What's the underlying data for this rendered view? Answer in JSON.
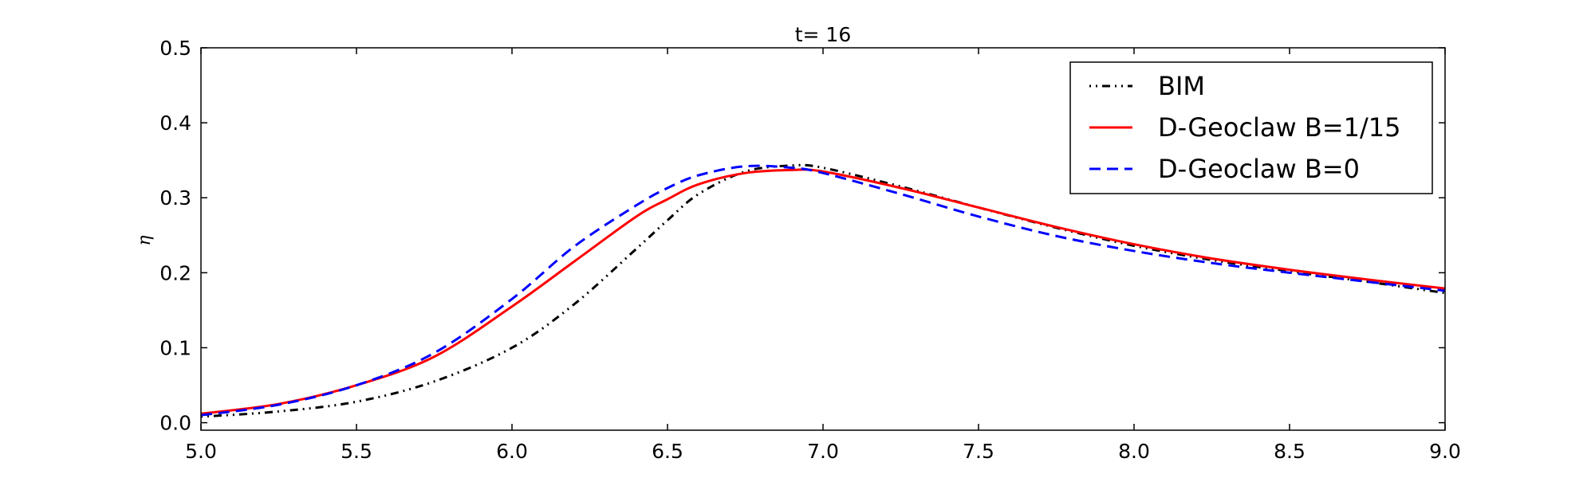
{
  "chart_data": {
    "type": "line",
    "title": "t= 16",
    "xlabel": "",
    "ylabel": "η",
    "xlim": [
      5.0,
      9.0
    ],
    "ylim": [
      -0.01,
      0.5
    ],
    "xticks": [
      "5.0",
      "5.5",
      "6.0",
      "6.5",
      "7.0",
      "7.5",
      "8.0",
      "8.5",
      "9.0"
    ],
    "yticks": [
      "0.0",
      "0.1",
      "0.2",
      "0.3",
      "0.4",
      "0.5"
    ],
    "legend_position": "top-right",
    "grid": false,
    "series": [
      {
        "name": "BIM",
        "color": "#000000",
        "style": "dashdot",
        "x": [
          5.0,
          5.25,
          5.5,
          5.75,
          6.0,
          6.2,
          6.4,
          6.5,
          6.6,
          6.75,
          6.9,
          7.0,
          7.25,
          7.5,
          7.75,
          8.0,
          8.25,
          8.5,
          8.75,
          9.0
        ],
        "y": [
          0.008,
          0.015,
          0.028,
          0.055,
          0.1,
          0.158,
          0.232,
          0.27,
          0.305,
          0.335,
          0.343,
          0.34,
          0.315,
          0.287,
          0.26,
          0.236,
          0.217,
          0.202,
          0.188,
          0.173
        ]
      },
      {
        "name": "D-Geoclaw B=1/15",
        "color": "#ff0000",
        "style": "solid",
        "x": [
          5.0,
          5.25,
          5.5,
          5.75,
          6.0,
          6.2,
          6.4,
          6.5,
          6.6,
          6.75,
          6.9,
          7.0,
          7.25,
          7.5,
          7.75,
          8.0,
          8.25,
          8.5,
          8.75,
          9.0
        ],
        "y": [
          0.012,
          0.025,
          0.05,
          0.088,
          0.155,
          0.215,
          0.275,
          0.298,
          0.318,
          0.333,
          0.337,
          0.335,
          0.313,
          0.287,
          0.261,
          0.238,
          0.219,
          0.204,
          0.191,
          0.179
        ]
      },
      {
        "name": "D-Geoclaw B=0",
        "color": "#0000ff",
        "style": "dashed",
        "x": [
          5.0,
          5.25,
          5.5,
          5.75,
          6.0,
          6.2,
          6.4,
          6.5,
          6.6,
          6.75,
          6.9,
          7.0,
          7.25,
          7.5,
          7.75,
          8.0,
          8.25,
          8.5,
          8.75,
          9.0
        ],
        "y": [
          0.01,
          0.024,
          0.05,
          0.093,
          0.165,
          0.235,
          0.29,
          0.313,
          0.33,
          0.342,
          0.34,
          0.333,
          0.305,
          0.275,
          0.249,
          0.229,
          0.213,
          0.2,
          0.188,
          0.176
        ]
      }
    ]
  }
}
